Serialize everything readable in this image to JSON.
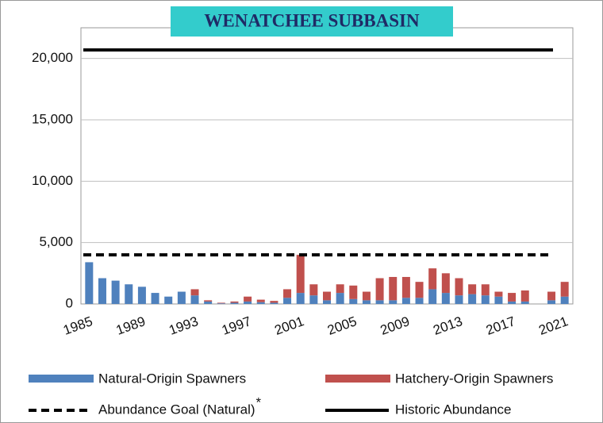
{
  "chart_data": {
    "type": "stacked_bar",
    "title": "WENATCHEE SUBBASIN",
    "categories": [
      "1985",
      null,
      null,
      null,
      "1989",
      null,
      null,
      null,
      "1993",
      null,
      null,
      null,
      "1997",
      null,
      null,
      null,
      "2001",
      null,
      null,
      null,
      "2005",
      null,
      null,
      null,
      "2009",
      null,
      null,
      null,
      "2013",
      null,
      null,
      null,
      "2017",
      null,
      null,
      null,
      "2021"
    ],
    "series": [
      {
        "name": "Natural-Origin Spawners",
        "color": "#4f81bd",
        "values": [
          3400,
          2100,
          1900,
          1600,
          1400,
          900,
          600,
          1000,
          700,
          200,
          50,
          100,
          200,
          150,
          100,
          500,
          900,
          700,
          300,
          900,
          400,
          300,
          300,
          300,
          500,
          500,
          1200,
          900,
          700,
          800,
          700,
          600,
          200,
          200,
          null,
          300,
          600
        ]
      },
      {
        "name": "Hatchery-Origin Spawners",
        "color": "#c0504d",
        "values": [
          0,
          0,
          0,
          0,
          0,
          0,
          0,
          0,
          500,
          100,
          50,
          100,
          400,
          200,
          150,
          700,
          3100,
          900,
          700,
          700,
          1100,
          700,
          1800,
          1900,
          1700,
          1300,
          1700,
          1600,
          1400,
          800,
          900,
          400,
          700,
          900,
          null,
          700,
          1200
        ]
      }
    ],
    "reference_lines": [
      {
        "name": "Abundance Goal (Natural)",
        "footnote_mark": "*",
        "value": 4000,
        "style": "dashed",
        "color": "#000000"
      },
      {
        "name": "Historic Abundance",
        "value": 20700,
        "style": "solid",
        "color": "#000000"
      }
    ],
    "ylim": [
      0,
      22500
    ],
    "yticks": [
      0,
      {
        "value": 5000,
        "label": "5,000"
      },
      {
        "value": 10000,
        "label": "10,000"
      },
      {
        "value": 15000,
        "label": "15,000"
      },
      {
        "value": 20000,
        "label": "20,000"
      }
    ],
    "grid": true,
    "legend": "bottom"
  }
}
